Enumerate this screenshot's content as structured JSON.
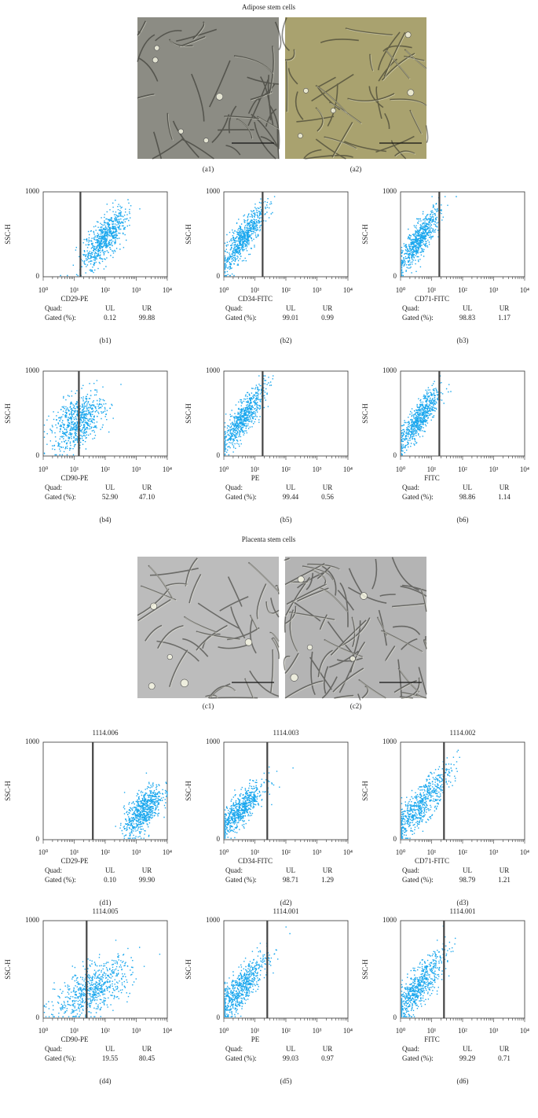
{
  "axis": {
    "ylabel": "SSC-H",
    "yticks": [
      "0",
      "1000"
    ],
    "xticks": [
      "10⁰",
      "10¹",
      "10²",
      "10³",
      "10⁴"
    ]
  },
  "table": {
    "quad": "Quad:",
    "ul": "UL",
    "ur": "UR",
    "gated": "Gated (%):"
  },
  "sections": [
    {
      "title": "Adipose stem cells",
      "images": [
        {
          "label": "(a1)"
        },
        {
          "label": "(a2)"
        }
      ],
      "plots": [
        {
          "xlabel": "CD29-PE",
          "ul": "0.12",
          "ur": "99.88",
          "label": "(b1)"
        },
        {
          "xlabel": "CD34-FITC",
          "ul": "99.01",
          "ur": "0.99",
          "label": "(b2)"
        },
        {
          "xlabel": "CD71-FITC",
          "ul": "98.83",
          "ur": "1.17",
          "label": "(b3)"
        },
        {
          "xlabel": "CD90-PE",
          "ul": "52.90",
          "ur": "47.10",
          "label": "(b4)"
        },
        {
          "xlabel": "PE",
          "ul": "99.44",
          "ur": "0.56",
          "label": "(b5)"
        },
        {
          "xlabel": "FITC",
          "ul": "98.86",
          "ur": "1.14",
          "label": "(b6)"
        }
      ]
    },
    {
      "title": "Placenta stem cells",
      "images": [
        {
          "label": "(c1)"
        },
        {
          "label": "(c2)"
        }
      ],
      "plots": [
        {
          "header": "1114.006",
          "xlabel": "CD29-PE",
          "ul": "0.10",
          "ur": "99.90",
          "label": "(d1)"
        },
        {
          "header": "1114.003",
          "xlabel": "CD34-FITC",
          "ul": "98.71",
          "ur": "1.29",
          "label": "(d2)"
        },
        {
          "header": "1114.002",
          "xlabel": "CD71-FITC",
          "ul": "98.79",
          "ur": "1.21",
          "label": "(d3)"
        },
        {
          "header": "1114.005",
          "xlabel": "CD90-PE",
          "ul": "19.55",
          "ur": "80.45",
          "label": "(d4)"
        },
        {
          "header": "1114.001",
          "xlabel": "PE",
          "ul": "99.03",
          "ur": "0.97",
          "label": "(d5)"
        },
        {
          "header": "1114.001",
          "xlabel": "FITC",
          "ul": "99.29",
          "ur": "0.71",
          "label": "(d6)"
        }
      ]
    }
  ]
}
